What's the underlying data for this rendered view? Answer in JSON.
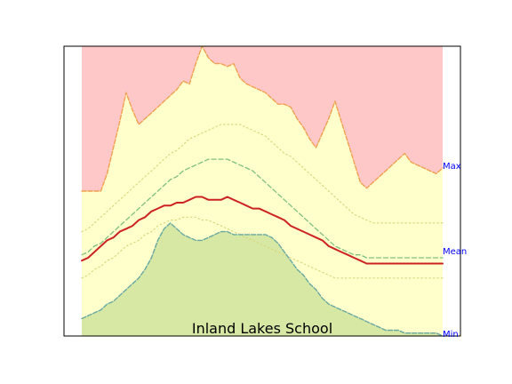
{
  "chart_data": {
    "type": "area",
    "title": "Inland Lakes School",
    "xlabel": "",
    "ylabel": "",
    "xlim": [
      0,
      57
    ],
    "ylim": [
      0,
      100
    ],
    "grid": false,
    "side_labels": [
      "Max",
      "Mean",
      "Min"
    ],
    "colors": {
      "above_max": "#ffc8c8",
      "band": "#ffffcc",
      "below_min": "#d6e8a4",
      "max_line": "#f0a050",
      "min_line": "#6aa8a0",
      "mean_line": "#cc2222",
      "avg_band_line": "#80c080",
      "std_band_line": "#d8d880",
      "side_label": "#0000ff"
    },
    "x": [
      0,
      1,
      2,
      3,
      4,
      5,
      6,
      7,
      8,
      9,
      10,
      11,
      12,
      13,
      14,
      15,
      16,
      17,
      18,
      19,
      20,
      21,
      22,
      23,
      24,
      25,
      26,
      27,
      28,
      29,
      30,
      31,
      32,
      33,
      34,
      35,
      36,
      37,
      38,
      39,
      40,
      41,
      42,
      43,
      44,
      45,
      46,
      47,
      48,
      49,
      50,
      51,
      52,
      53,
      54,
      55,
      56,
      57
    ],
    "series": [
      {
        "key": "max",
        "values": [
          50,
          50,
          50,
          50,
          56,
          65,
          74,
          84,
          78,
          73,
          75,
          77,
          79,
          81,
          83,
          85,
          88,
          87,
          94,
          100,
          96,
          94,
          94,
          93,
          94,
          89,
          87,
          86,
          85,
          84,
          82,
          80,
          80,
          79,
          75,
          72,
          68,
          65,
          70,
          75,
          81,
          74,
          67,
          60,
          53,
          51,
          53,
          55,
          57,
          59,
          61,
          63,
          60,
          59,
          58,
          57,
          56,
          58
        ]
      },
      {
        "key": "upper_std",
        "values": [
          36,
          37,
          39,
          41,
          43,
          45,
          47,
          49,
          51,
          53,
          55,
          57,
          59,
          61,
          63,
          64,
          66,
          68,
          69,
          70,
          71,
          72,
          73,
          73,
          73,
          73,
          72,
          71,
          70,
          69,
          67,
          65,
          63,
          62,
          60,
          58,
          56,
          54,
          52,
          50,
          48,
          46,
          44,
          42,
          41,
          40,
          39,
          39,
          39,
          39,
          39,
          39,
          39,
          39,
          39,
          39,
          39,
          39
        ]
      },
      {
        "key": "upper_avg",
        "values": [
          28,
          29,
          31,
          32,
          34,
          36,
          38,
          40,
          42,
          44,
          46,
          48,
          50,
          52,
          54,
          55,
          57,
          58,
          59,
          60,
          61,
          61,
          61,
          61,
          60,
          59,
          58,
          57,
          55,
          53,
          51,
          49,
          47,
          45,
          43,
          41,
          39,
          37,
          35,
          33,
          31,
          30,
          29,
          28,
          28,
          27,
          27,
          27,
          27,
          27,
          27,
          27,
          27,
          27,
          27,
          27,
          27,
          27
        ]
      },
      {
        "key": "mean",
        "values": [
          26,
          27,
          29,
          31,
          33,
          34,
          36,
          37,
          38,
          40,
          41,
          43,
          44,
          45,
          45,
          46,
          46,
          47,
          48,
          48,
          47,
          47,
          47,
          48,
          47,
          46,
          45,
          44,
          44,
          43,
          42,
          41,
          40,
          38,
          37,
          36,
          35,
          34,
          33,
          31,
          30,
          29,
          28,
          27,
          26,
          25,
          25,
          25,
          25,
          25,
          25,
          25,
          25,
          25,
          25,
          25,
          25,
          25
        ]
      },
      {
        "key": "lower_std",
        "values": [
          20,
          21,
          23,
          24,
          26,
          27,
          29,
          31,
          32,
          33,
          35,
          36,
          38,
          39,
          40,
          40,
          41,
          41,
          41,
          40,
          40,
          39,
          38,
          37,
          36,
          35,
          34,
          33,
          32,
          31,
          30,
          29,
          28,
          27,
          26,
          25,
          24,
          23,
          22,
          21,
          20,
          20,
          20,
          20,
          20,
          20,
          20,
          20,
          20,
          20,
          20,
          20,
          20,
          20,
          20,
          20,
          20,
          20
        ]
      },
      {
        "key": "min",
        "values": [
          6,
          7,
          8,
          9,
          11,
          12,
          14,
          16,
          18,
          20,
          23,
          27,
          33,
          37,
          39,
          37,
          35,
          34,
          33,
          33,
          34,
          35,
          36,
          36,
          35,
          35,
          35,
          35,
          35,
          35,
          34,
          32,
          29,
          26,
          23,
          21,
          18,
          16,
          13,
          11,
          10,
          9,
          8,
          7,
          6,
          5,
          4,
          3,
          2,
          2,
          2,
          1,
          1,
          1,
          1,
          1,
          1,
          0
        ]
      }
    ]
  }
}
